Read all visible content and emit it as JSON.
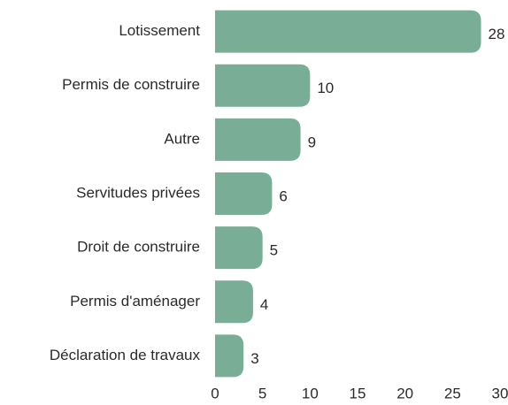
{
  "chart_data": {
    "type": "bar",
    "orientation": "horizontal",
    "categories": [
      "Lotissement",
      "Permis de construire",
      "Autre",
      "Servitudes privées",
      "Droit de construire",
      "Permis d'aménager",
      "Déclaration de travaux"
    ],
    "values": [
      28,
      10,
      9,
      6,
      5,
      4,
      3
    ],
    "color": "#79ad95",
    "xlim": [
      0,
      30
    ],
    "xticks": [
      0,
      5,
      10,
      15,
      20,
      25,
      30
    ],
    "grid": false
  }
}
